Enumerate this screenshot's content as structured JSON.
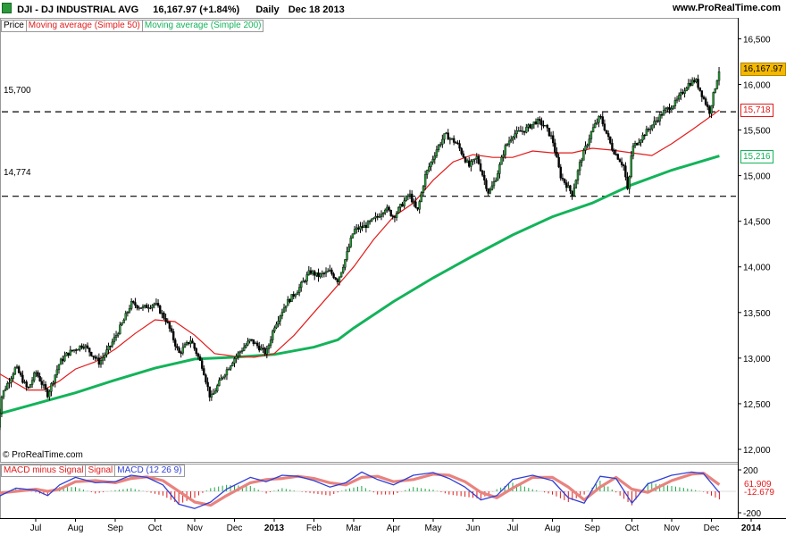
{
  "header": {
    "symbol": "DJI - DJ INDUSTRIAL AVG",
    "last_change": "16,167.97 (+1.84%)",
    "period": "Daily",
    "date": "Dec 18 2013",
    "site": "www.ProRealTime.com"
  },
  "watermark": "© ProRealTime.com",
  "legend_main": [
    {
      "label": "Price",
      "color": "#000000"
    },
    {
      "label": "Moving average (Simple 50)",
      "color": "#e21b1b"
    },
    {
      "label": "Moving average (Simple 200)",
      "color": "#13b35a"
    }
  ],
  "legend_macd": [
    {
      "label": "MACD minus Signal",
      "color": "#e21b1b"
    },
    {
      "label": "Signal",
      "color": "#e21b1b"
    },
    {
      "label": "MACD (12 26 9)",
      "color": "#2f3fd6"
    }
  ],
  "levels": [
    {
      "label": "15,700",
      "value": 15700
    },
    {
      "label": "14,774",
      "value": 14774
    }
  ],
  "price_labels": [
    {
      "label": "16,167.97",
      "value": 16168,
      "bg": "#f5b800",
      "fg": "#000000",
      "border": "#b08400"
    },
    {
      "label": "15,718",
      "value": 15718,
      "bg": "#ffffff",
      "fg": "#e21b1b",
      "border": "#e21b1b"
    },
    {
      "label": "15,216",
      "value": 15216,
      "bg": "#ffffff",
      "fg": "#13b35a",
      "border": "#13b35a"
    }
  ],
  "macd_labels": [
    {
      "label": "61.909",
      "value": 62,
      "fg": "#e21b1b"
    },
    {
      "label": "-12.679",
      "value": -12.7,
      "fg": "#e21b1b"
    }
  ],
  "chart_data": {
    "type": "line",
    "ylim": [
      12000,
      16700
    ],
    "yticks": [
      {
        "value": 12000,
        "label": "12,000"
      },
      {
        "value": 12500,
        "label": "12,500"
      },
      {
        "value": 13000,
        "label": "13,000"
      },
      {
        "value": 13500,
        "label": "13,500"
      },
      {
        "value": 14000,
        "label": "14,000"
      },
      {
        "value": 14500,
        "label": "14,500"
      },
      {
        "value": 15000,
        "label": "15,000"
      },
      {
        "value": 15500,
        "label": "15,500"
      },
      {
        "value": 16000,
        "label": "16,000"
      },
      {
        "value": 16500,
        "label": "16,500"
      }
    ],
    "x_range": [
      0,
      18.2
    ],
    "xticks": [
      {
        "t": 1,
        "label": "Jul"
      },
      {
        "t": 2,
        "label": "Aug"
      },
      {
        "t": 3,
        "label": "Sep"
      },
      {
        "t": 4,
        "label": "Oct"
      },
      {
        "t": 5,
        "label": "Nov"
      },
      {
        "t": 6,
        "label": "Dec"
      },
      {
        "t": 7,
        "label": "2013",
        "bold": true
      },
      {
        "t": 8,
        "label": "Feb"
      },
      {
        "t": 9,
        "label": "Mar"
      },
      {
        "t": 10,
        "label": "Apr"
      },
      {
        "t": 11,
        "label": "May"
      },
      {
        "t": 12,
        "label": "Jun"
      },
      {
        "t": 13,
        "label": "Jul"
      },
      {
        "t": 14,
        "label": "Aug"
      },
      {
        "t": 15,
        "label": "Sep"
      },
      {
        "t": 16,
        "label": "Oct"
      },
      {
        "t": 17,
        "label": "Nov"
      },
      {
        "t": 18,
        "label": "Dec"
      },
      {
        "t": 19,
        "label": "2014",
        "bold": true
      }
    ],
    "series": [
      {
        "name": "Price",
        "color": "#000000",
        "points": [
          [
            0,
            12100
          ],
          [
            0.15,
            12600
          ],
          [
            0.5,
            12900
          ],
          [
            0.8,
            12650
          ],
          [
            1.0,
            12850
          ],
          [
            1.3,
            12600
          ],
          [
            1.6,
            12950
          ],
          [
            1.8,
            13050
          ],
          [
            2.2,
            13150
          ],
          [
            2.6,
            12950
          ],
          [
            2.9,
            13150
          ],
          [
            3.2,
            13400
          ],
          [
            3.4,
            13600
          ],
          [
            3.7,
            13550
          ],
          [
            4.0,
            13600
          ],
          [
            4.3,
            13400
          ],
          [
            4.6,
            13050
          ],
          [
            4.9,
            13200
          ],
          [
            5.2,
            12900
          ],
          [
            5.4,
            12550
          ],
          [
            5.7,
            12800
          ],
          [
            6.0,
            13000
          ],
          [
            6.4,
            13200
          ],
          [
            6.8,
            13050
          ],
          [
            7.0,
            13350
          ],
          [
            7.3,
            13600
          ],
          [
            7.6,
            13750
          ],
          [
            7.9,
            13950
          ],
          [
            8.1,
            13900
          ],
          [
            8.4,
            13950
          ],
          [
            8.6,
            13850
          ],
          [
            8.8,
            14100
          ],
          [
            9.0,
            14400
          ],
          [
            9.3,
            14450
          ],
          [
            9.6,
            14550
          ],
          [
            9.8,
            14650
          ],
          [
            10.0,
            14550
          ],
          [
            10.4,
            14800
          ],
          [
            10.6,
            14600
          ],
          [
            10.8,
            15000
          ],
          [
            11.1,
            15300
          ],
          [
            11.3,
            15450
          ],
          [
            11.6,
            15350
          ],
          [
            11.9,
            15100
          ],
          [
            12.1,
            15200
          ],
          [
            12.4,
            14800
          ],
          [
            12.6,
            15000
          ],
          [
            12.8,
            15300
          ],
          [
            13.0,
            15450
          ],
          [
            13.3,
            15500
          ],
          [
            13.6,
            15600
          ],
          [
            13.8,
            15550
          ],
          [
            14.0,
            15400
          ],
          [
            14.2,
            15000
          ],
          [
            14.5,
            14800
          ],
          [
            14.7,
            15150
          ],
          [
            15.0,
            15500
          ],
          [
            15.2,
            15650
          ],
          [
            15.5,
            15300
          ],
          [
            15.8,
            15100
          ],
          [
            15.9,
            14800
          ],
          [
            16.0,
            15300
          ],
          [
            16.3,
            15450
          ],
          [
            16.6,
            15600
          ],
          [
            16.8,
            15700
          ],
          [
            17.1,
            15800
          ],
          [
            17.4,
            16000
          ],
          [
            17.6,
            16050
          ],
          [
            17.8,
            15850
          ],
          [
            17.95,
            15700
          ],
          [
            18.2,
            16168
          ]
        ]
      },
      {
        "name": "Moving average (Simple 50)",
        "color": "#e21b1b",
        "points": [
          [
            0,
            12850
          ],
          [
            0.4,
            12750
          ],
          [
            0.8,
            12650
          ],
          [
            1.2,
            12650
          ],
          [
            1.6,
            12750
          ],
          [
            2.0,
            12880
          ],
          [
            2.5,
            12960
          ],
          [
            3.0,
            13100
          ],
          [
            3.5,
            13270
          ],
          [
            4.0,
            13420
          ],
          [
            4.5,
            13400
          ],
          [
            5.0,
            13250
          ],
          [
            5.5,
            13050
          ],
          [
            6.0,
            13020
          ],
          [
            6.5,
            13010
          ],
          [
            7.0,
            13050
          ],
          [
            7.5,
            13250
          ],
          [
            8.0,
            13500
          ],
          [
            8.5,
            13750
          ],
          [
            9.0,
            14000
          ],
          [
            9.5,
            14300
          ],
          [
            10.0,
            14550
          ],
          [
            10.5,
            14700
          ],
          [
            11.0,
            14950
          ],
          [
            11.5,
            15150
          ],
          [
            12.0,
            15230
          ],
          [
            12.5,
            15200
          ],
          [
            13.0,
            15200
          ],
          [
            13.5,
            15270
          ],
          [
            14.0,
            15250
          ],
          [
            14.5,
            15250
          ],
          [
            15.0,
            15300
          ],
          [
            15.5,
            15280
          ],
          [
            16.0,
            15250
          ],
          [
            16.5,
            15220
          ],
          [
            17.0,
            15350
          ],
          [
            17.5,
            15500
          ],
          [
            18.2,
            15718
          ]
        ]
      },
      {
        "name": "Moving average (Simple 200)",
        "color": "#13b35a",
        "points": [
          [
            0,
            12380
          ],
          [
            1,
            12500
          ],
          [
            2,
            12620
          ],
          [
            3,
            12760
          ],
          [
            4,
            12890
          ],
          [
            5,
            12990
          ],
          [
            6,
            13010
          ],
          [
            7,
            13040
          ],
          [
            8,
            13120
          ],
          [
            8.6,
            13200
          ],
          [
            9,
            13330
          ],
          [
            10,
            13620
          ],
          [
            11,
            13880
          ],
          [
            12,
            14120
          ],
          [
            13,
            14350
          ],
          [
            14,
            14550
          ],
          [
            15,
            14700
          ],
          [
            16,
            14900
          ],
          [
            17,
            15060
          ],
          [
            18.2,
            15216
          ]
        ]
      }
    ],
    "macd": {
      "ylim": [
        -200,
        200
      ],
      "yticks": [
        {
          "value": 200,
          "label": "200"
        },
        {
          "value": -200,
          "label": "-200"
        }
      ],
      "series": [
        {
          "name": "MACD (12 26 9)",
          "color": "#2f3fd6",
          "points": [
            [
              0,
              -60
            ],
            [
              0.5,
              30
            ],
            [
              1.0,
              10
            ],
            [
              1.3,
              -40
            ],
            [
              1.6,
              60
            ],
            [
              2.0,
              130
            ],
            [
              2.5,
              80
            ],
            [
              3.0,
              90
            ],
            [
              3.4,
              150
            ],
            [
              3.8,
              130
            ],
            [
              4.2,
              60
            ],
            [
              4.6,
              -120
            ],
            [
              5.0,
              -160
            ],
            [
              5.4,
              -100
            ],
            [
              5.8,
              20
            ],
            [
              6.4,
              130
            ],
            [
              6.8,
              90
            ],
            [
              7.2,
              150
            ],
            [
              7.6,
              140
            ],
            [
              8.0,
              100
            ],
            [
              8.4,
              40
            ],
            [
              8.8,
              80
            ],
            [
              9.2,
              180
            ],
            [
              9.6,
              110
            ],
            [
              10.0,
              60
            ],
            [
              10.5,
              150
            ],
            [
              11.0,
              175
            ],
            [
              11.4,
              120
            ],
            [
              11.8,
              40
            ],
            [
              12.2,
              -80
            ],
            [
              12.6,
              -40
            ],
            [
              13.0,
              110
            ],
            [
              13.5,
              150
            ],
            [
              14.0,
              100
            ],
            [
              14.4,
              -60
            ],
            [
              14.8,
              -110
            ],
            [
              15.2,
              140
            ],
            [
              15.6,
              120
            ],
            [
              16.0,
              -110
            ],
            [
              16.4,
              70
            ],
            [
              17.0,
              150
            ],
            [
              17.5,
              180
            ],
            [
              17.8,
              165
            ],
            [
              18.2,
              -12.7
            ]
          ]
        },
        {
          "name": "Signal",
          "color": "#e8837f",
          "points": [
            [
              0,
              -20
            ],
            [
              0.5,
              0
            ],
            [
              1.0,
              20
            ],
            [
              1.3,
              0
            ],
            [
              1.6,
              20
            ],
            [
              2.0,
              90
            ],
            [
              2.5,
              100
            ],
            [
              3.0,
              80
            ],
            [
              3.4,
              120
            ],
            [
              3.8,
              135
            ],
            [
              4.2,
              100
            ],
            [
              4.6,
              0
            ],
            [
              5.0,
              -100
            ],
            [
              5.4,
              -130
            ],
            [
              5.8,
              -40
            ],
            [
              6.4,
              80
            ],
            [
              6.8,
              110
            ],
            [
              7.2,
              120
            ],
            [
              7.6,
              140
            ],
            [
              8.0,
              120
            ],
            [
              8.4,
              80
            ],
            [
              8.8,
              60
            ],
            [
              9.2,
              130
            ],
            [
              9.6,
              140
            ],
            [
              10.0,
              90
            ],
            [
              10.5,
              110
            ],
            [
              11.0,
              160
            ],
            [
              11.4,
              150
            ],
            [
              11.8,
              90
            ],
            [
              12.2,
              -10
            ],
            [
              12.6,
              -60
            ],
            [
              13.0,
              30
            ],
            [
              13.5,
              130
            ],
            [
              14.0,
              130
            ],
            [
              14.4,
              40
            ],
            [
              14.8,
              -80
            ],
            [
              15.2,
              40
            ],
            [
              15.6,
              130
            ],
            [
              16.0,
              20
            ],
            [
              16.4,
              -10
            ],
            [
              17.0,
              100
            ],
            [
              17.5,
              160
            ],
            [
              17.8,
              170
            ],
            [
              18.2,
              62
            ]
          ]
        }
      ]
    }
  }
}
